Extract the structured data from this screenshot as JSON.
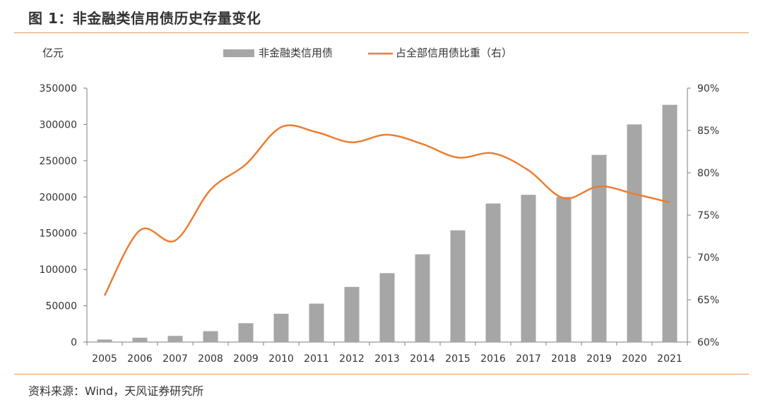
{
  "figure": {
    "title": "图 1：非金融类信用债历史存量变化",
    "source": "资料来源：Wind，天风证券研究所"
  },
  "colors": {
    "bar": "#A6A6A6",
    "line": "#ED7D31",
    "rule": "#E39A5B",
    "axis": "#7F7F7F"
  },
  "chart_data": {
    "type": "bar",
    "ylabel_left": "亿元",
    "categories": [
      "2005",
      "2006",
      "2007",
      "2008",
      "2009",
      "2010",
      "2011",
      "2012",
      "2013",
      "2014",
      "2015",
      "2016",
      "2017",
      "2018",
      "2019",
      "2020",
      "2021"
    ],
    "series": [
      {
        "name": "非金融类信用债",
        "type": "bar",
        "axis": "left",
        "values": [
          3500,
          6000,
          8500,
          15000,
          26000,
          39000,
          53000,
          76000,
          95000,
          121000,
          154000,
          191000,
          203000,
          200000,
          258000,
          300000,
          327000
        ]
      },
      {
        "name": "占全部信用债比重（右）",
        "type": "line",
        "axis": "right",
        "values": [
          65.5,
          73.2,
          72.0,
          78.0,
          81.0,
          85.4,
          84.8,
          83.6,
          84.5,
          83.4,
          81.8,
          82.3,
          80.3,
          77.0,
          78.4,
          77.5,
          76.5
        ]
      }
    ],
    "ylim_left": [
      0,
      350000
    ],
    "yticks_left": [
      "0",
      "50000",
      "100000",
      "150000",
      "200000",
      "250000",
      "300000",
      "350000"
    ],
    "ylim_right": [
      60,
      90
    ],
    "yticks_right": [
      "60%",
      "65%",
      "70%",
      "75%",
      "80%",
      "85%",
      "90%"
    ],
    "grid": false,
    "legend_position": "top-center"
  }
}
